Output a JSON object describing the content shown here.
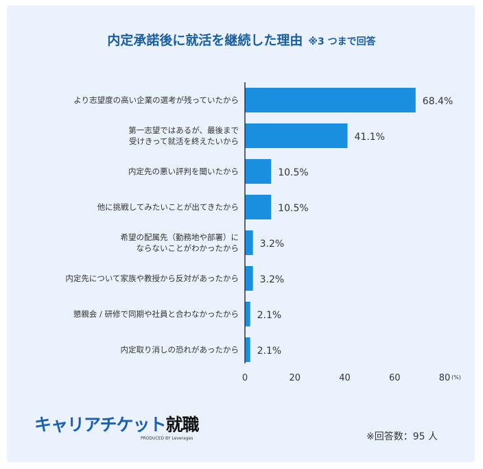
{
  "title": "内定承諾後に就活を継続した理由",
  "title_note": "※3 つまで回答",
  "chart_data": {
    "type": "bar",
    "orientation": "horizontal",
    "categories": [
      [
        "より志望度の高い企業の選考が残っていたから"
      ],
      [
        "第一志望ではあるが、最後まで",
        "受けきって就活を終えたいから"
      ],
      [
        "内定先の悪い評判を聞いたから"
      ],
      [
        "他に挑戦してみたいことが出てきたから"
      ],
      [
        "希望の配属先（勤務地や部署）に",
        "ならないことがわかったから"
      ],
      [
        "内定先について家族や教授から反対があったから"
      ],
      [
        "懇親会 / 研修で同期や社員と合わなかったから"
      ],
      [
        "内定取り消しの恐れがあったから"
      ]
    ],
    "values": [
      68.4,
      41.1,
      10.5,
      10.5,
      3.2,
      3.2,
      2.1,
      2.1
    ],
    "data_labels": [
      "68.4%",
      "41.1%",
      "10.5%",
      "10.5%",
      "3.2%",
      "3.2%",
      "2.1%",
      "2.1%"
    ],
    "xlim": [
      0,
      80
    ],
    "xticks": [
      0,
      20,
      40,
      60,
      80
    ],
    "xunit": "(%)",
    "grid": false,
    "bar_color": "#1a8fe0"
  },
  "footer": {
    "logo": "キャリアチケット",
    "logo_suffix": "就職",
    "produced_by": "PRODUCED BY Leverages",
    "respondents": "※回答数：95 人"
  }
}
